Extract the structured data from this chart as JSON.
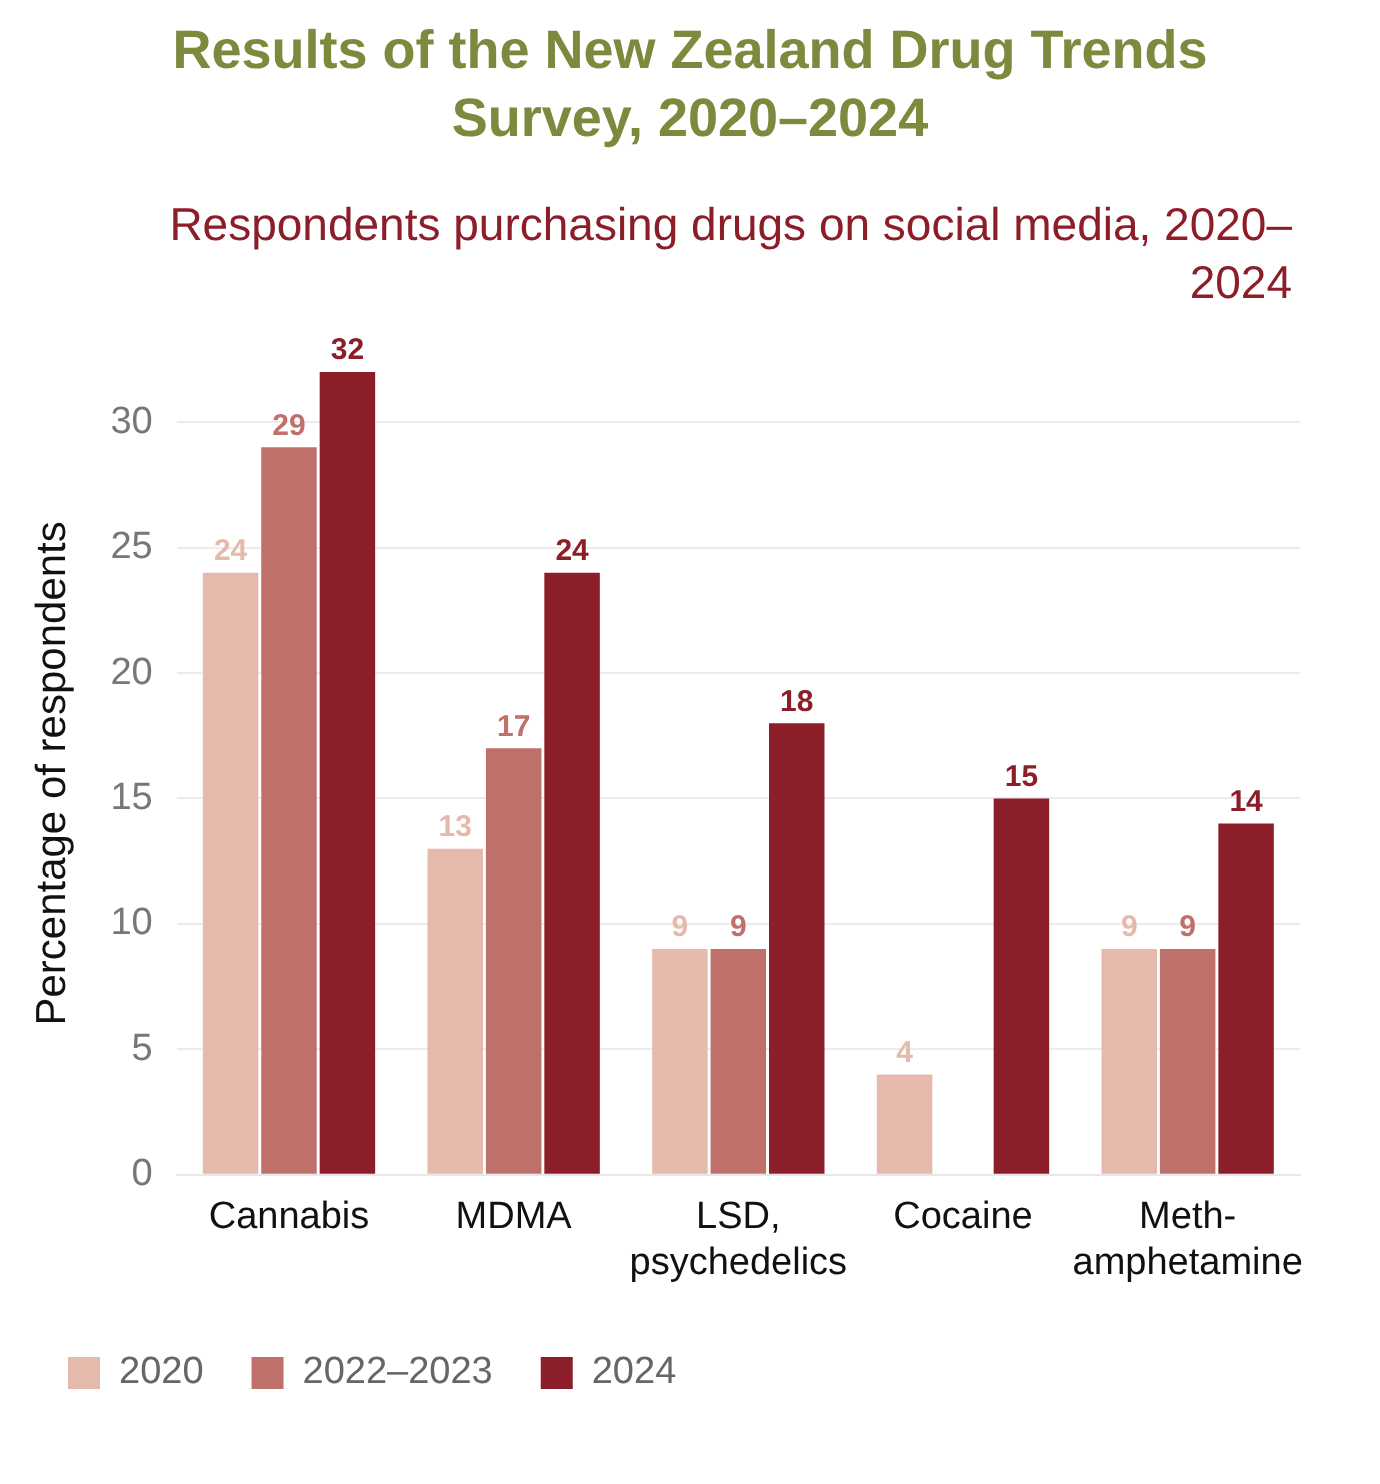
{
  "chart_data": {
    "type": "bar",
    "title": "Results of the New Zealand Drug Trends Survey, 2020–2024",
    "subtitle": "Respondents purchasing drugs on social media, 2020–2024",
    "ylabel": "Percentage of respondents",
    "categories": [
      "Cannabis",
      "MDMA",
      "LSD,\npsychedelics",
      "Cocaine",
      "Meth-\namphetamine"
    ],
    "series": [
      {
        "name": "2020",
        "color": "#e6b9ad",
        "values": [
          24,
          13,
          9,
          4,
          9
        ]
      },
      {
        "name": "2022–2023",
        "color": "#bf706b",
        "values": [
          29,
          17,
          9,
          null,
          9
        ]
      },
      {
        "name": "2024",
        "color": "#8b1e29",
        "values": [
          32,
          24,
          18,
          15,
          14
        ]
      }
    ],
    "ylim": [
      0,
      32
    ],
    "yticks": [
      0,
      5,
      10,
      15,
      20,
      25,
      30
    ],
    "grid": "y",
    "legend": "bottom left",
    "data_labels": true
  }
}
